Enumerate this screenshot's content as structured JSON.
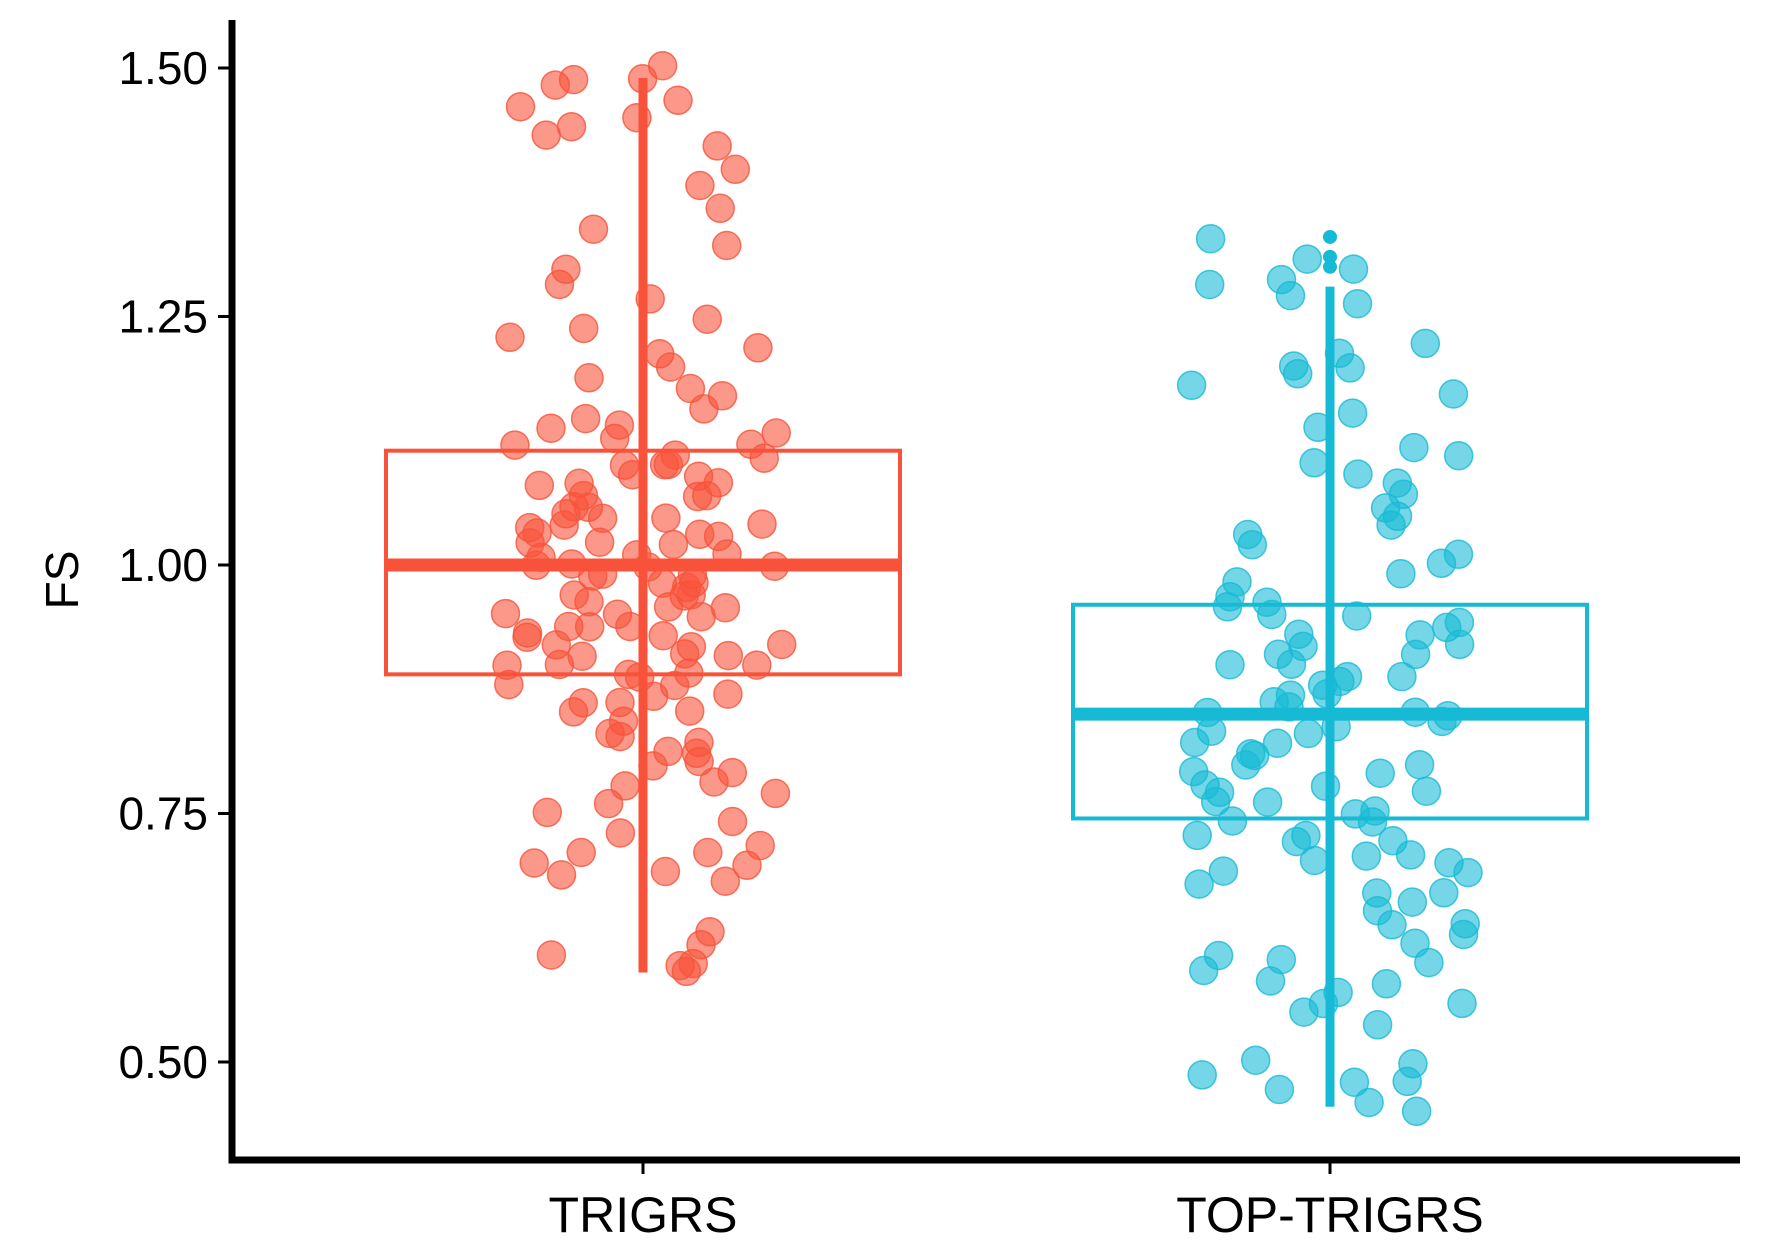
{
  "chart_data": {
    "type": "box",
    "ylabel": "FS",
    "xlabel": "",
    "ylim": [
      0.44,
      1.55
    ],
    "yticks": [
      0.5,
      0.75,
      1.0,
      1.25,
      1.5
    ],
    "ytick_labels": [
      "0.50",
      "0.75",
      "1.00",
      "1.25",
      "1.50"
    ],
    "categories": [
      "TRIGRS",
      "TOP-TRIGRS"
    ],
    "grid": false,
    "legend": "none",
    "groups": [
      {
        "name": "TRIGRS",
        "color": "#F8533A",
        "box": {
          "q1": 0.89,
          "median": 1.0,
          "q3": 1.115,
          "whisker_low": 0.59,
          "whisker_high": 1.49
        },
        "outliers": [],
        "points": [
          0.59,
          0.6,
          0.6,
          0.61,
          0.62,
          0.63,
          0.68,
          0.69,
          0.69,
          0.7,
          0.7,
          0.71,
          0.71,
          0.72,
          0.73,
          0.74,
          0.75,
          0.76,
          0.77,
          0.78,
          0.78,
          0.79,
          0.8,
          0.8,
          0.81,
          0.81,
          0.82,
          0.83,
          0.83,
          0.84,
          0.85,
          0.85,
          0.86,
          0.86,
          0.87,
          0.87,
          0.88,
          0.88,
          0.89,
          0.89,
          0.89,
          0.9,
          0.9,
          0.9,
          0.91,
          0.91,
          0.91,
          0.92,
          0.92,
          0.92,
          0.93,
          0.93,
          0.93,
          0.94,
          0.94,
          0.94,
          0.95,
          0.95,
          0.95,
          0.96,
          0.96,
          0.96,
          0.97,
          0.97,
          0.97,
          0.98,
          0.98,
          0.98,
          0.99,
          0.99,
          0.99,
          1.0,
          1.0,
          1.0,
          1.0,
          1.01,
          1.01,
          1.01,
          1.02,
          1.02,
          1.02,
          1.03,
          1.03,
          1.03,
          1.04,
          1.04,
          1.04,
          1.05,
          1.05,
          1.05,
          1.06,
          1.06,
          1.07,
          1.07,
          1.07,
          1.08,
          1.08,
          1.08,
          1.09,
          1.09,
          1.1,
          1.1,
          1.1,
          1.11,
          1.11,
          1.12,
          1.12,
          1.13,
          1.13,
          1.14,
          1.14,
          1.15,
          1.16,
          1.17,
          1.18,
          1.19,
          1.2,
          1.21,
          1.22,
          1.23,
          1.24,
          1.25,
          1.27,
          1.28,
          1.3,
          1.32,
          1.34,
          1.36,
          1.38,
          1.4,
          1.42,
          1.43,
          1.44,
          1.45,
          1.46,
          1.47,
          1.48,
          1.49,
          1.49,
          1.5
        ]
      },
      {
        "name": "TOP-TRIGRS",
        "color": "#17BAD5",
        "box": {
          "q1": 0.745,
          "median": 0.85,
          "q3": 0.96,
          "whisker_low": 0.455,
          "whisker_high": 1.28
        },
        "outliers": [
          1.3,
          1.31,
          1.33
        ],
        "points": [
          0.45,
          0.46,
          0.47,
          0.48,
          0.48,
          0.49,
          0.5,
          0.5,
          0.54,
          0.55,
          0.56,
          0.56,
          0.57,
          0.58,
          0.58,
          0.59,
          0.6,
          0.6,
          0.61,
          0.62,
          0.63,
          0.64,
          0.64,
          0.65,
          0.66,
          0.67,
          0.67,
          0.68,
          0.69,
          0.69,
          0.7,
          0.7,
          0.71,
          0.71,
          0.72,
          0.72,
          0.73,
          0.73,
          0.74,
          0.74,
          0.75,
          0.75,
          0.76,
          0.76,
          0.77,
          0.77,
          0.78,
          0.78,
          0.79,
          0.79,
          0.8,
          0.8,
          0.81,
          0.81,
          0.82,
          0.82,
          0.83,
          0.83,
          0.84,
          0.84,
          0.85,
          0.85,
          0.85,
          0.86,
          0.86,
          0.87,
          0.87,
          0.88,
          0.88,
          0.89,
          0.89,
          0.9,
          0.9,
          0.91,
          0.91,
          0.92,
          0.92,
          0.93,
          0.93,
          0.94,
          0.94,
          0.95,
          0.95,
          0.96,
          0.96,
          0.97,
          0.98,
          0.99,
          1.0,
          1.01,
          1.02,
          1.03,
          1.04,
          1.05,
          1.06,
          1.07,
          1.08,
          1.09,
          1.1,
          1.11,
          1.12,
          1.14,
          1.15,
          1.17,
          1.18,
          1.19,
          1.2,
          1.2,
          1.21,
          1.22,
          1.26,
          1.27,
          1.28,
          1.29,
          1.3,
          1.31,
          1.33
        ]
      }
    ]
  }
}
